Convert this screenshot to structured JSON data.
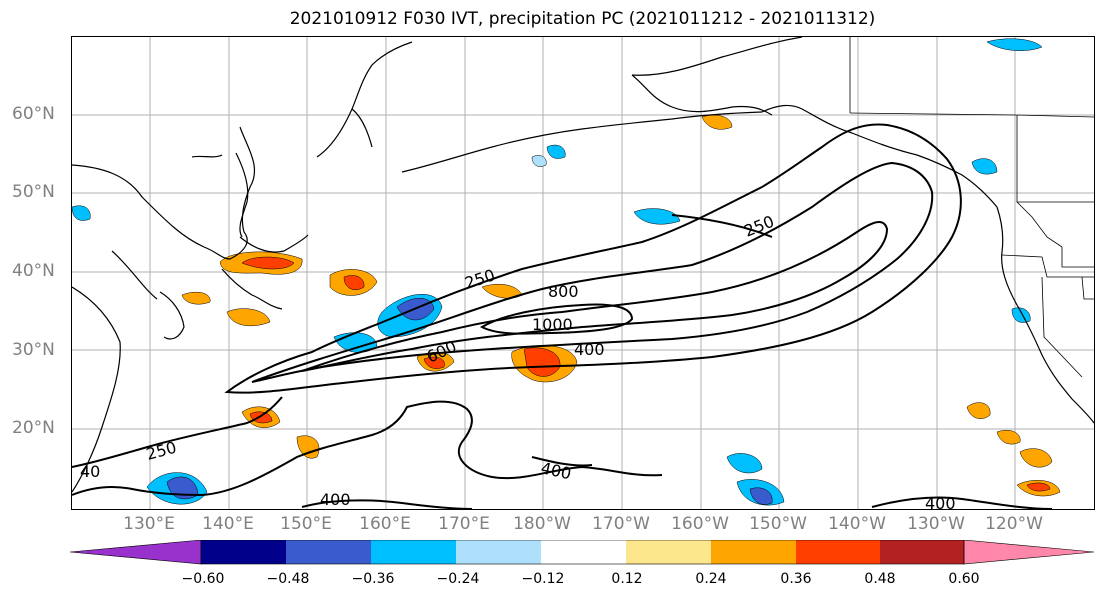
{
  "title": "2021010912 F030 IVT, precipitation PC (2021011212 - 2021011312)",
  "map": {
    "lat_labels": [
      "60°N",
      "50°N",
      "40°N",
      "30°N",
      "20°N"
    ],
    "lon_labels": [
      "130°E",
      "140°E",
      "150°E",
      "160°E",
      "170°E",
      "180°W",
      "170°W",
      "160°W",
      "150°W",
      "140°W",
      "130°W",
      "120°W"
    ],
    "contour_labels": [
      "250",
      "250",
      "800",
      "1000",
      "400",
      "600",
      "250",
      "400",
      "400",
      "400",
      "40"
    ],
    "contour_color": "#000000",
    "coastline_color": "#000000",
    "gridline_color": "#b0b0b0"
  },
  "colorbar": {
    "colors": [
      "#9932cc",
      "#00008b",
      "#3a5bcd",
      "#00bfff",
      "#aee0fc",
      "#ffffff",
      "#fde78c",
      "#ffa500",
      "#ff3f00",
      "#b22222",
      "#ff88aa"
    ],
    "tick_labels": [
      "−0.60",
      "−0.48",
      "−0.36",
      "−0.24",
      "−0.12",
      "0.12",
      "0.24",
      "0.36",
      "0.48",
      "0.60"
    ],
    "extend": "both"
  }
}
